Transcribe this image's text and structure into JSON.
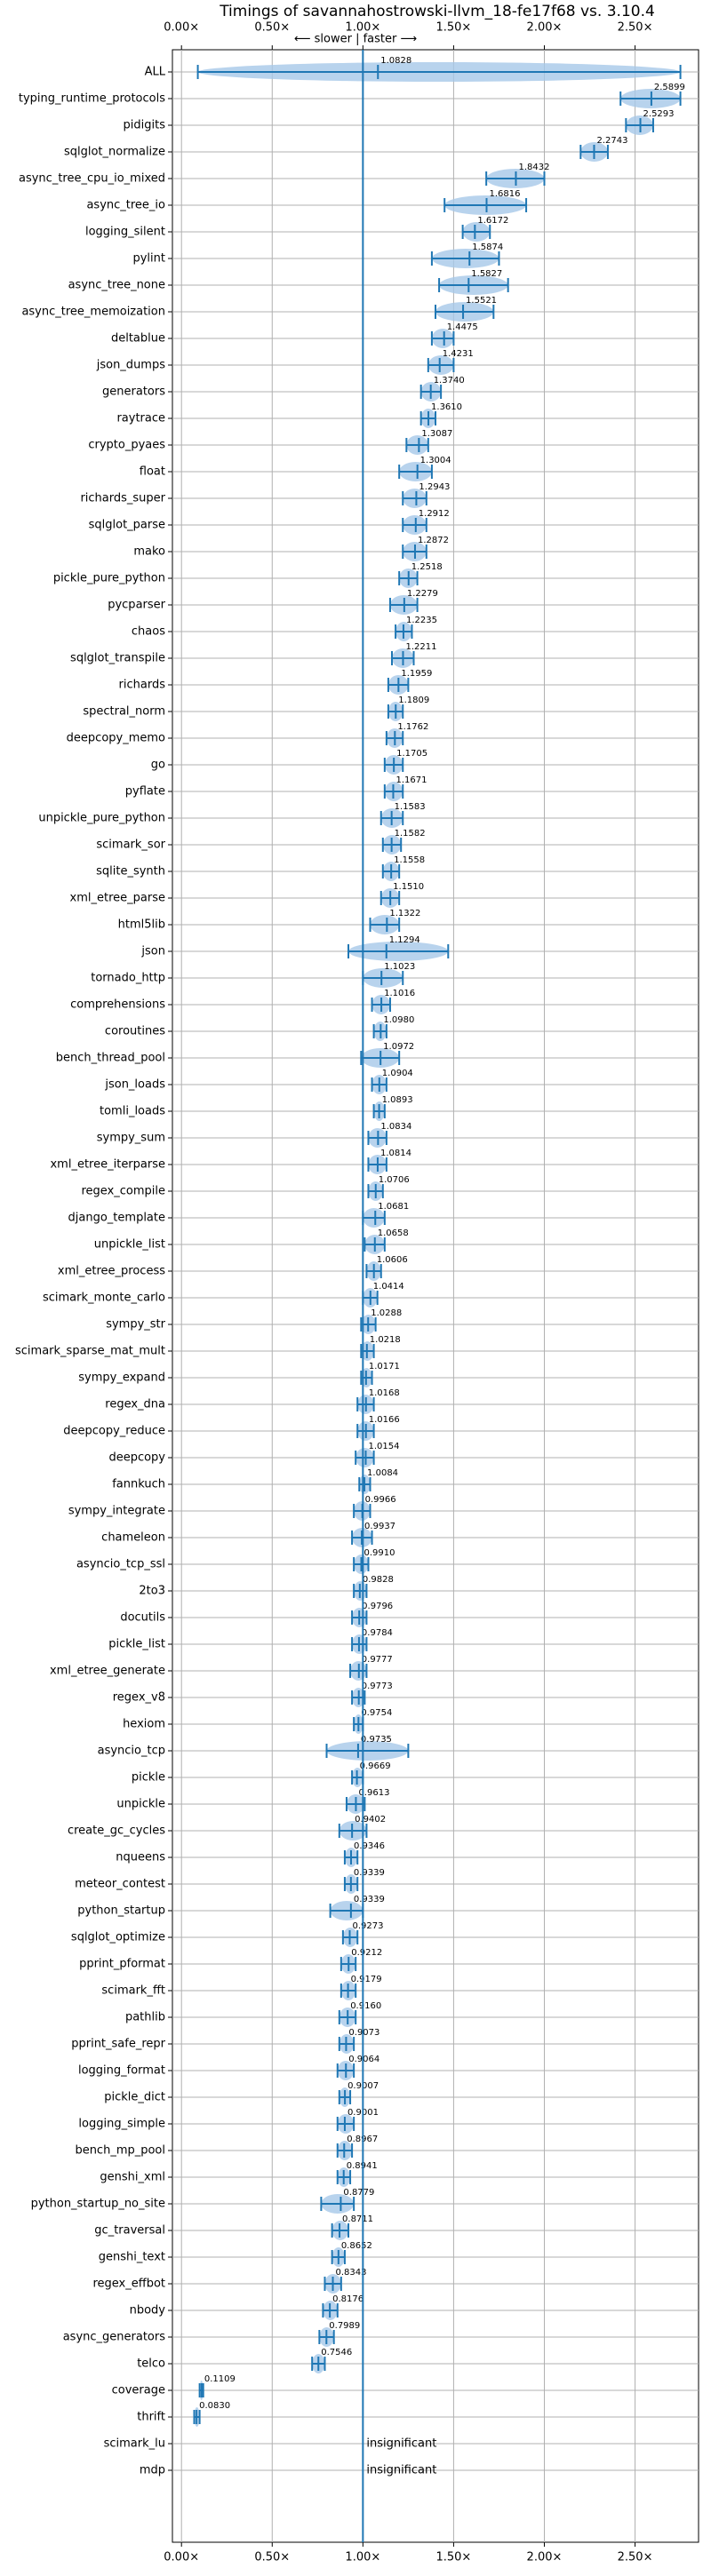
{
  "chart_data": {
    "type": "violin",
    "title": "Timings of savannahostrowski-llvm_18-fe17f68 vs. 3.10.4",
    "annotation": "⟵ slower | faster ⟶",
    "categories": [
      "ALL",
      "typing_runtime_protocols",
      "pidigits",
      "sqlglot_normalize",
      "async_tree_cpu_io_mixed",
      "async_tree_io",
      "logging_silent",
      "pylint",
      "async_tree_none",
      "async_tree_memoization",
      "deltablue",
      "json_dumps",
      "generators",
      "raytrace",
      "crypto_pyaes",
      "float",
      "richards_super",
      "sqlglot_parse",
      "mako",
      "pickle_pure_python",
      "pycparser",
      "chaos",
      "sqlglot_transpile",
      "richards",
      "spectral_norm",
      "deepcopy_memo",
      "go",
      "pyflate",
      "unpickle_pure_python",
      "scimark_sor",
      "sqlite_synth",
      "xml_etree_parse",
      "html5lib",
      "json",
      "tornado_http",
      "comprehensions",
      "coroutines",
      "bench_thread_pool",
      "json_loads",
      "tomli_loads",
      "sympy_sum",
      "xml_etree_iterparse",
      "regex_compile",
      "django_template",
      "unpickle_list",
      "xml_etree_process",
      "scimark_monte_carlo",
      "sympy_str",
      "scimark_sparse_mat_mult",
      "sympy_expand",
      "regex_dna",
      "deepcopy_reduce",
      "deepcopy",
      "fannkuch",
      "sympy_integrate",
      "chameleon",
      "asyncio_tcp_ssl",
      "2to3",
      "docutils",
      "pickle_list",
      "xml_etree_generate",
      "regex_v8",
      "hexiom",
      "asyncio_tcp",
      "pickle",
      "unpickle",
      "create_gc_cycles",
      "nqueens",
      "meteor_contest",
      "python_startup",
      "sqlglot_optimize",
      "pprint_pformat",
      "scimark_fft",
      "pathlib",
      "pprint_safe_repr",
      "logging_format",
      "pickle_dict",
      "logging_simple",
      "bench_mp_pool",
      "genshi_xml",
      "python_startup_no_site",
      "gc_traversal",
      "genshi_text",
      "regex_effbot",
      "nbody",
      "async_generators",
      "telco",
      "coverage",
      "thrift",
      "scimark_lu",
      "mdp"
    ],
    "values": [
      1.0828,
      2.5899,
      2.5293,
      2.2743,
      1.8432,
      1.6816,
      1.6172,
      1.5874,
      1.5827,
      1.5521,
      1.4475,
      1.4231,
      1.374,
      1.361,
      1.3087,
      1.3004,
      1.2943,
      1.2912,
      1.2872,
      1.2518,
      1.2279,
      1.2235,
      1.2211,
      1.1959,
      1.1809,
      1.1762,
      1.1705,
      1.1671,
      1.1583,
      1.1582,
      1.1558,
      1.151,
      1.1322,
      1.1294,
      1.1023,
      1.1016,
      1.098,
      1.0972,
      1.0904,
      1.0893,
      1.0834,
      1.0814,
      1.0706,
      1.0681,
      1.0658,
      1.0606,
      1.0414,
      1.0288,
      1.0218,
      1.0171,
      1.0168,
      1.0166,
      1.0154,
      1.0084,
      0.9966,
      0.9937,
      0.991,
      0.9828,
      0.9796,
      0.9784,
      0.9777,
      0.9773,
      0.9754,
      0.9735,
      0.9669,
      0.9613,
      0.9402,
      0.9346,
      0.9339,
      0.9339,
      0.9273,
      0.9212,
      0.9179,
      0.916,
      0.9073,
      0.9064,
      0.9007,
      0.9001,
      0.8967,
      0.8941,
      0.8779,
      0.8711,
      0.8652,
      0.8343,
      0.8176,
      0.7989,
      0.7546,
      0.1109,
      0.083,
      null,
      null
    ],
    "value_labels": [
      "1.0828",
      "2.5899",
      "2.5293",
      "2.2743",
      "1.8432",
      "1.6816",
      "1.6172",
      "1.5874",
      "1.5827",
      "1.5521",
      "1.4475",
      "1.4231",
      "1.3740",
      "1.3610",
      "1.3087",
      "1.3004",
      "1.2943",
      "1.2912",
      "1.2872",
      "1.2518",
      "1.2279",
      "1.2235",
      "1.2211",
      "1.1959",
      "1.1809",
      "1.1762",
      "1.1705",
      "1.1671",
      "1.1583",
      "1.1582",
      "1.1558",
      "1.1510",
      "1.1322",
      "1.1294",
      "1.1023",
      "1.1016",
      "1.0980",
      "1.0972",
      "1.0904",
      "1.0893",
      "1.0834",
      "1.0814",
      "1.0706",
      "1.0681",
      "1.0658",
      "1.0606",
      "1.0414",
      "1.0288",
      "1.0218",
      "1.0171",
      "1.0168",
      "1.0166",
      "1.0154",
      "1.0084",
      "0.9966",
      "0.9937",
      "0.9910",
      "0.9828",
      "0.9796",
      "0.9784",
      "0.9777",
      "0.9773",
      "0.9754",
      "0.9735",
      "0.9669",
      "0.9613",
      "0.9402",
      "0.9346",
      "0.9339",
      "0.9339",
      "0.9273",
      "0.9212",
      "0.9179",
      "0.9160",
      "0.9073",
      "0.9064",
      "0.9007",
      "0.9001",
      "0.8967",
      "0.8941",
      "0.8779",
      "0.8711",
      "0.8652",
      "0.8343",
      "0.8176",
      "0.7989",
      "0.7546",
      "0.1109",
      "0.0830",
      "insignificant",
      "insignificant"
    ],
    "low": [
      0.09,
      2.42,
      2.45,
      2.2,
      1.68,
      1.45,
      1.55,
      1.38,
      1.42,
      1.4,
      1.38,
      1.36,
      1.32,
      1.32,
      1.24,
      1.2,
      1.22,
      1.22,
      1.22,
      1.2,
      1.15,
      1.18,
      1.16,
      1.14,
      1.14,
      1.13,
      1.12,
      1.12,
      1.1,
      1.11,
      1.11,
      1.1,
      1.04,
      0.92,
      1.0,
      1.05,
      1.06,
      0.99,
      1.05,
      1.06,
      1.03,
      1.03,
      1.03,
      1.0,
      1.01,
      1.02,
      1.0,
      0.99,
      0.99,
      0.99,
      0.97,
      0.97,
      0.96,
      0.98,
      0.95,
      0.94,
      0.95,
      0.95,
      0.94,
      0.94,
      0.93,
      0.94,
      0.95,
      0.8,
      0.94,
      0.91,
      0.87,
      0.9,
      0.9,
      0.82,
      0.89,
      0.88,
      0.88,
      0.87,
      0.87,
      0.86,
      0.87,
      0.86,
      0.86,
      0.86,
      0.77,
      0.83,
      0.83,
      0.79,
      0.78,
      0.76,
      0.72,
      0.1,
      0.07,
      null,
      null
    ],
    "high": [
      2.75,
      2.75,
      2.6,
      2.35,
      2.0,
      1.9,
      1.7,
      1.75,
      1.8,
      1.72,
      1.5,
      1.5,
      1.43,
      1.4,
      1.36,
      1.38,
      1.35,
      1.35,
      1.35,
      1.3,
      1.3,
      1.27,
      1.28,
      1.25,
      1.22,
      1.22,
      1.22,
      1.22,
      1.22,
      1.21,
      1.2,
      1.2,
      1.2,
      1.47,
      1.22,
      1.15,
      1.13,
      1.2,
      1.13,
      1.12,
      1.13,
      1.13,
      1.11,
      1.12,
      1.12,
      1.1,
      1.08,
      1.07,
      1.06,
      1.05,
      1.06,
      1.06,
      1.06,
      1.04,
      1.04,
      1.05,
      1.03,
      1.02,
      1.02,
      1.02,
      1.02,
      1.01,
      1.0,
      1.25,
      1.0,
      1.01,
      1.02,
      0.97,
      0.97,
      1.0,
      0.97,
      0.96,
      0.96,
      0.96,
      0.95,
      0.95,
      0.93,
      0.95,
      0.94,
      0.93,
      0.95,
      0.92,
      0.9,
      0.88,
      0.86,
      0.84,
      0.79,
      0.12,
      0.1,
      null,
      null
    ],
    "color": "#1f77b4",
    "violin_color": "#a6c8e8",
    "reference_line": 1,
    "grid": true,
    "xlim": [
      -0.05,
      2.85
    ],
    "xticks": [
      {
        "value": 0,
        "label": "0.00×"
      },
      {
        "value": 0.5,
        "label": "0.50×"
      },
      {
        "value": 1,
        "label": "1.00×"
      },
      {
        "value": 1.5,
        "label": "1.50×"
      },
      {
        "value": 2,
        "label": "2.00×"
      },
      {
        "value": 2.5,
        "label": "2.50×"
      }
    ]
  }
}
